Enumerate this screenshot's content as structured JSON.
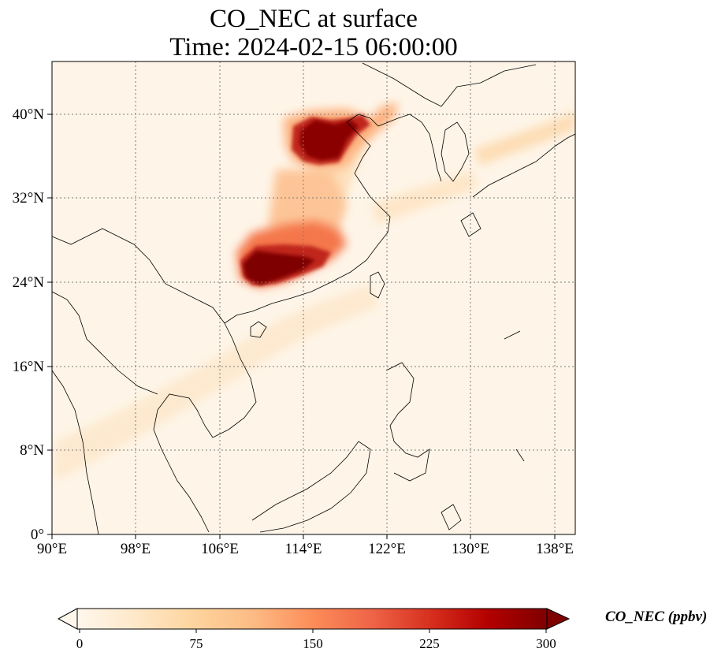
{
  "title": {
    "line1": "CO_NEC at surface",
    "line2": "Time: 2024-02-15 06:00:00"
  },
  "map": {
    "extent_lon": [
      90,
      140
    ],
    "extent_lat": [
      0,
      45
    ],
    "lon_ticks": [
      "90°E",
      "98°E",
      "106°E",
      "114°E",
      "122°E",
      "130°E",
      "138°E"
    ],
    "lat_ticks": [
      "0°",
      "8°N",
      "16°N",
      "24°N",
      "32°N",
      "40°N"
    ],
    "gridlines": true,
    "colormap": "OrRd"
  },
  "colorbar": {
    "label": "CO_NEC (ppbv)",
    "ticks": [
      "0",
      "75",
      "150",
      "225",
      "300"
    ],
    "range": [
      0,
      300
    ],
    "extend": "both",
    "colors": [
      "#fff7ec",
      "#fee8c8",
      "#fdd49e",
      "#fdbb84",
      "#fc8d59",
      "#ef6548",
      "#d7301f",
      "#b30000",
      "#7f0000"
    ]
  },
  "hotspots": [
    {
      "region": "North China Plain",
      "level": "above 300"
    },
    {
      "region": "South China",
      "level": "above 300"
    }
  ]
}
